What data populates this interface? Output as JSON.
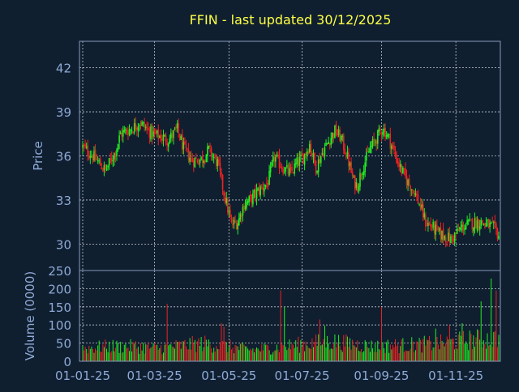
{
  "chart_data": {
    "type": "candlestick",
    "title": "FFIN - last updated 30/12/2025",
    "title_color": "#ffff44",
    "background": "#0f1f30",
    "panel_border_color": "#8899bb",
    "grid": true,
    "grid_color": "#ffffff",
    "up_color": "#22ee22",
    "down_color": "#ee2222",
    "x_ticks": [
      "01-01-25",
      "01-03-25",
      "01-05-25",
      "01-07-25",
      "01-09-25",
      "01-11-25"
    ],
    "price_panel": {
      "ylabel": "Price",
      "ylim": [
        28.2,
        43.8
      ],
      "yticks": [
        30,
        33,
        36,
        39,
        42
      ]
    },
    "volume_panel": {
      "ylabel": "Volume (0000)",
      "ylim": [
        0,
        250
      ],
      "yticks": [
        0,
        50,
        100,
        150,
        200,
        250
      ]
    },
    "price_path": [
      [
        0,
        36.6
      ],
      [
        8,
        36.0
      ],
      [
        18,
        35.0
      ],
      [
        26,
        36.3
      ],
      [
        30,
        37.5
      ],
      [
        40,
        37.9
      ],
      [
        45,
        38.3
      ],
      [
        55,
        37.5
      ],
      [
        68,
        37.1
      ],
      [
        75,
        37.8
      ],
      [
        80,
        36.5
      ],
      [
        87,
        35.7
      ],
      [
        95,
        35.8
      ],
      [
        100,
        36.4
      ],
      [
        107,
        35.5
      ],
      [
        112,
        33.5
      ],
      [
        118,
        31.3
      ],
      [
        123,
        31.5
      ],
      [
        128,
        32.7
      ],
      [
        133,
        33.0
      ],
      [
        138,
        33.5
      ],
      [
        147,
        34.2
      ],
      [
        152,
        35.9
      ],
      [
        160,
        35.1
      ],
      [
        165,
        34.8
      ],
      [
        170,
        35.5
      ],
      [
        175,
        35.9
      ],
      [
        180,
        36.8
      ],
      [
        185,
        35.2
      ],
      [
        190,
        36.2
      ],
      [
        195,
        37.0
      ],
      [
        200,
        37.7
      ],
      [
        205,
        37.2
      ],
      [
        210,
        35.9
      ],
      [
        215,
        34.2
      ],
      [
        218,
        34.0
      ],
      [
        222,
        35.2
      ],
      [
        228,
        36.5
      ],
      [
        233,
        37.2
      ],
      [
        238,
        37.9
      ],
      [
        243,
        37.2
      ],
      [
        248,
        36.0
      ],
      [
        253,
        35.0
      ],
      [
        258,
        34.2
      ],
      [
        263,
        33.6
      ],
      [
        268,
        32.5
      ],
      [
        272,
        31.5
      ],
      [
        278,
        31.1
      ],
      [
        283,
        30.7
      ],
      [
        288,
        30.5
      ],
      [
        292,
        30.3
      ],
      [
        297,
        30.8
      ],
      [
        302,
        31.2
      ],
      [
        308,
        31.4
      ],
      [
        315,
        31.5
      ],
      [
        321,
        31.3
      ],
      [
        327,
        31.0
      ],
      [
        330,
        30.6
      ]
    ],
    "volume_profile": [
      [
        0,
        40
      ],
      [
        20,
        45
      ],
      [
        45,
        45
      ],
      [
        60,
        40
      ],
      [
        95,
        55
      ],
      [
        115,
        45
      ],
      [
        135,
        35
      ],
      [
        160,
        45
      ],
      [
        180,
        55
      ],
      [
        200,
        60
      ],
      [
        230,
        45
      ],
      [
        260,
        50
      ],
      [
        285,
        55
      ],
      [
        305,
        65
      ],
      [
        330,
        70
      ]
    ],
    "volume_spikes": [
      [
        67,
        158
      ],
      [
        110,
        105
      ],
      [
        112,
        95
      ],
      [
        157,
        195
      ],
      [
        160,
        150
      ],
      [
        188,
        115
      ],
      [
        192,
        98
      ],
      [
        237,
        150
      ],
      [
        280,
        90
      ],
      [
        291,
        100
      ],
      [
        301,
        105
      ],
      [
        316,
        165
      ],
      [
        324,
        228
      ],
      [
        328,
        195
      ]
    ]
  }
}
